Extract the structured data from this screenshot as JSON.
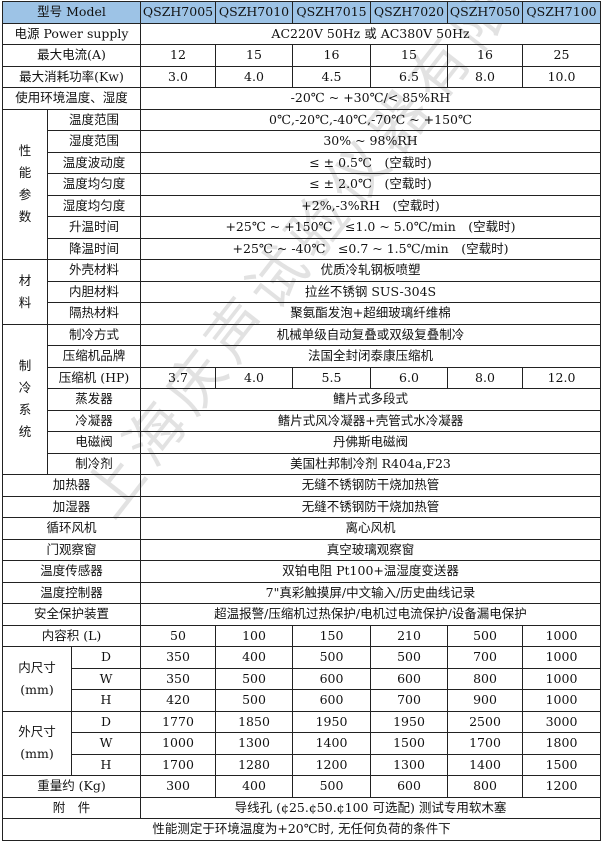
{
  "header": {
    "label": "型号 Model",
    "models": [
      "QSZH7005",
      "QSZH7010",
      "QSZH7015",
      "QSZH7020",
      "QSZH7050",
      "QSZH7100"
    ],
    "background": "#9dc3e6"
  },
  "rows": [
    {
      "label": "电源 Power supply",
      "value": "AC220V 50Hz 或 AC380V 50Hz"
    },
    {
      "label": "最大电流(A)",
      "values": [
        "12",
        "15",
        "16",
        "15",
        "16",
        "25"
      ]
    },
    {
      "label": "最大消耗功率(Kw)",
      "values": [
        "3.0",
        "4.0",
        "4.5",
        "6.5",
        "8.0",
        "10.0"
      ]
    },
    {
      "label": "使用环境温度、湿度",
      "value": "-20℃ ~ +30℃/< 85%RH"
    }
  ],
  "groups": [
    {
      "group": "性能参数",
      "vertical": true,
      "items": [
        {
          "label": "温度范围",
          "value": "0℃,-20℃,-40℃,-70℃ ~ +150℃"
        },
        {
          "label": "湿度范围",
          "value": "30% ~ 98%RH"
        },
        {
          "label": "温度波动度",
          "value": "≤ ± 0.5℃　(空载时)"
        },
        {
          "label": "温度均匀度",
          "value": "≤ ± 2.0℃　(空载时)"
        },
        {
          "label": "湿度均匀度",
          "value": "+2%,-3%RH　(空载时)"
        },
        {
          "label": "升温时间",
          "value": "+25℃ ~ +150℃　≤1.0 ~ 5.0℃/min　(空载时)"
        },
        {
          "label": "降温时间",
          "value": "+25℃ ~ -40℃　≤0.7 ~ 1.5℃/min　(空载时)"
        }
      ]
    },
    {
      "group": "材料",
      "vertical": true,
      "items": [
        {
          "label": "外壳材料",
          "value": "优质冷轧钢板喷塑"
        },
        {
          "label": "内胆材料",
          "value": "拉丝不锈钢 SUS-304S"
        },
        {
          "label": "隔热材料",
          "value": "聚氨酯发泡+超细玻璃纤维棉"
        }
      ]
    },
    {
      "group": "制冷系统",
      "vertical": true,
      "items": [
        {
          "label": "制冷方式",
          "value": "机械单级自动复叠或双级复叠制冷"
        },
        {
          "label": "压缩机品牌",
          "value": "法国全封闭泰康压缩机"
        },
        {
          "label": "压缩机 (HP)",
          "values": [
            "3.7",
            "4.0",
            "5.5",
            "6.0",
            "8.0",
            "12.0"
          ]
        },
        {
          "label": "蒸发器",
          "value": "鳍片式多段式"
        },
        {
          "label": "冷凝器",
          "value": "鳍片式风冷凝器+壳管式水冷凝器"
        },
        {
          "label": "电磁阀",
          "value": "丹佛斯电磁阀"
        },
        {
          "label": "制冷剂",
          "value": "美国杜邦制冷剂 R404a,F23"
        }
      ]
    }
  ],
  "rows2": [
    {
      "label": "加热器",
      "value": "无缝不锈钢防干烧加热管"
    },
    {
      "label": "加湿器",
      "value": "无缝不锈钢防干烧加热管"
    },
    {
      "label": "循环风机",
      "value": "离心风机"
    },
    {
      "label": "门观察窗",
      "value": "真空玻璃观察窗"
    },
    {
      "label": "温度传感器",
      "value": "双铂电阻 Pt100+温湿度变送器"
    },
    {
      "label": "温度控制器",
      "value": "7\"真彩触摸屏/中文输入/历史曲线记录"
    },
    {
      "label": "安全保护装置",
      "value": "超温报警/压缩机过热保护/电机过电流保护/设备漏电保护"
    },
    {
      "label": "内容积 (L)",
      "values": [
        "50",
        "100",
        "150",
        "210",
        "500",
        "1000"
      ]
    }
  ],
  "dims": [
    {
      "group": "内尺寸",
      "unit": "(mm)",
      "items": [
        {
          "label": "D",
          "values": [
            "350",
            "400",
            "500",
            "500",
            "700",
            "1000"
          ]
        },
        {
          "label": "W",
          "values": [
            "350",
            "500",
            "600",
            "600",
            "800",
            "1000"
          ]
        },
        {
          "label": "H",
          "values": [
            "420",
            "500",
            "600",
            "700",
            "900",
            "1000"
          ]
        }
      ]
    },
    {
      "group": "外尺寸",
      "unit": "(mm)",
      "items": [
        {
          "label": "D",
          "values": [
            "1770",
            "1850",
            "1950",
            "1950",
            "2500",
            "3000"
          ]
        },
        {
          "label": "W",
          "values": [
            "1000",
            "1300",
            "1400",
            "1500",
            "1700",
            "1800"
          ]
        },
        {
          "label": "H",
          "values": [
            "1700",
            "1280",
            "1200",
            "1300",
            "1400",
            "1500"
          ]
        }
      ]
    }
  ],
  "rows3": [
    {
      "label": "重量约 (Kg)",
      "values": [
        "300",
        "400",
        "500",
        "600",
        "800",
        "1200"
      ]
    },
    {
      "label": "附　件",
      "value": "导线孔 (¢25.¢50.¢100 可选配) 测试专用软木塞"
    }
  ],
  "note": "性能测定于环境温度为+20℃时, 无任何负荷的条件下",
  "watermark": "上海庆声试验仪器有限公司"
}
